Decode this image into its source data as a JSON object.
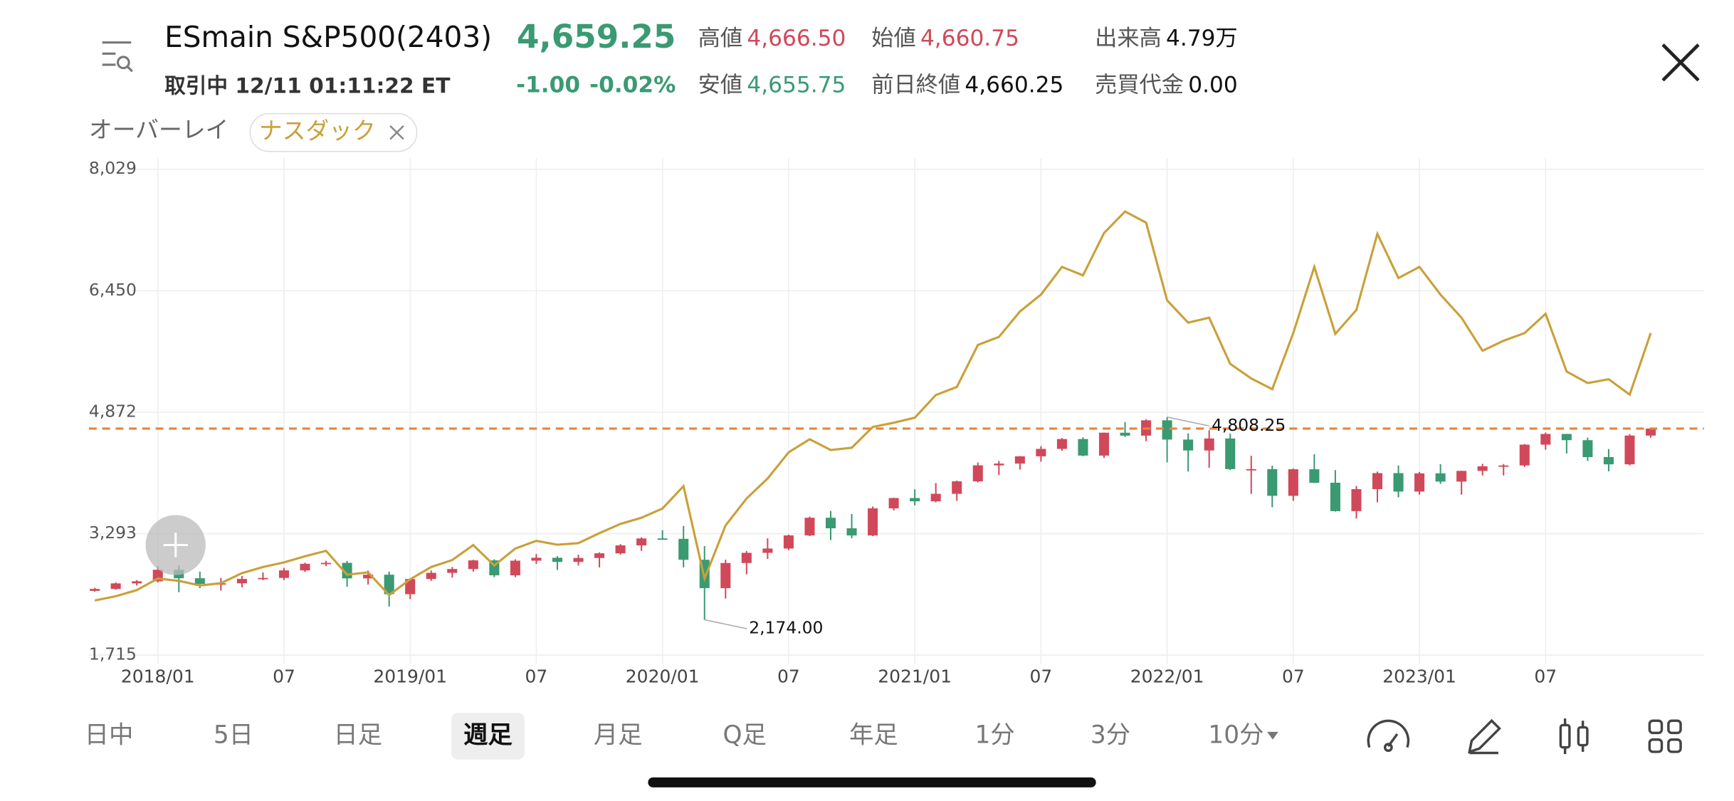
{
  "header": {
    "symbol": "ESmain S&P500(2403)",
    "status": "取引中 12/11 01:11:22 ET",
    "price": "4,659.25",
    "change": "-1.00",
    "change_pct": "-0.02%",
    "price_color": "#3a9a72",
    "stats": [
      {
        "label": "高値",
        "value": "4,666.50",
        "color": "#d0495a"
      },
      {
        "label": "始値",
        "value": "4,660.75",
        "color": "#d0495a"
      },
      {
        "label": "出来高",
        "value": "4.79万",
        "color": "#111111"
      },
      {
        "label": "安値",
        "value": "4,655.75",
        "color": "#3a9a72"
      },
      {
        "label": "前日終値",
        "value": "4,660.25",
        "color": "#111111"
      },
      {
        "label": "売買代金",
        "value": "0.00",
        "color": "#111111"
      }
    ]
  },
  "overlay_label": "オーバーレイ",
  "chart_data": {
    "type": "candlestick",
    "x": [
      "2017/10",
      "2017/11",
      "2017/12",
      "2018/01",
      "2018/02",
      "2018/03",
      "2018/04",
      "2018/05",
      "2018/06",
      "2018/07",
      "2018/08",
      "2018/09",
      "2018/10",
      "2018/11",
      "2018/12",
      "2019/01",
      "2019/02",
      "2019/03",
      "2019/04",
      "2019/05",
      "2019/06",
      "2019/07",
      "2019/08",
      "2019/09",
      "2019/10",
      "2019/11",
      "2019/12",
      "2020/01",
      "2020/02",
      "2020/03",
      "2020/04",
      "2020/05",
      "2020/06",
      "2020/07",
      "2020/08",
      "2020/09",
      "2020/10",
      "2020/11",
      "2020/12",
      "2021/01",
      "2021/02",
      "2021/03",
      "2021/04",
      "2021/05",
      "2021/06",
      "2021/07",
      "2021/08",
      "2021/09",
      "2021/10",
      "2021/11",
      "2021/12",
      "2022/01",
      "2022/02",
      "2022/03",
      "2022/04",
      "2022/05",
      "2022/06",
      "2022/07",
      "2022/08",
      "2022/09",
      "2022/10",
      "2022/11",
      "2022/12",
      "2023/01",
      "2023/02",
      "2023/03",
      "2023/04",
      "2023/05",
      "2023/06",
      "2023/07",
      "2023/08",
      "2023/09",
      "2023/10",
      "2023/11",
      "2023/12"
    ],
    "open": [
      2550,
      2575,
      2647,
      2674,
      2824,
      2714,
      2641,
      2648,
      2705,
      2718,
      2816,
      2902,
      2914,
      2712,
      2760,
      2507,
      2704,
      2784,
      2834,
      2946,
      2752,
      2942,
      2980,
      2926,
      2977,
      3038,
      3141,
      3231,
      3226,
      2954,
      2585,
      2912,
      3044,
      3100,
      3271,
      3500,
      3363,
      3270,
      3622,
      3756,
      3714,
      3811,
      3973,
      4181,
      4204,
      4298,
      4395,
      4523,
      4308,
      4605,
      4567,
      4766,
      4516,
      4374,
      4530,
      4132,
      4132,
      3785,
      4130,
      3955,
      3586,
      3872,
      4080,
      3840,
      4077,
      3970,
      4109,
      4169,
      4180,
      4450,
      4589,
      4508,
      4288,
      4194,
      4568
    ],
    "high": [
      2590,
      2660,
      2690,
      2872,
      2880,
      2800,
      2717,
      2742,
      2790,
      2848,
      2916,
      2940,
      2940,
      2815,
      2800,
      2710,
      2814,
      2860,
      2954,
      2960,
      2960,
      3028,
      3000,
      3020,
      3050,
      3157,
      3247,
      3338,
      3393,
      3130,
      2955,
      3068,
      3233,
      3280,
      3515,
      3588,
      3550,
      3645,
      3760,
      3870,
      3950,
      3983,
      4218,
      4238,
      4302,
      4430,
      4537,
      4545,
      4608,
      4743,
      4780,
      4808.25,
      4595,
      4637,
      4593,
      4307,
      4177,
      4140,
      4325,
      4119,
      3913,
      4100,
      4180,
      4095,
      4195,
      4110,
      4200,
      4198,
      4458,
      4607,
      4590,
      4541,
      4393,
      4587,
      4666.5
    ],
    "low": [
      2540,
      2565,
      2620,
      2660,
      2533,
      2585,
      2553,
      2595,
      2690,
      2690,
      2795,
      2872,
      2603,
      2631,
      2346,
      2443,
      2681,
      2722,
      2800,
      2728,
      2728,
      2900,
      2822,
      2880,
      2855,
      3020,
      3070,
      3214,
      2855,
      2174,
      2450,
      2766,
      2965,
      3080,
      3260,
      3210,
      3233,
      3260,
      3595,
      3660,
      3700,
      3720,
      3960,
      4056,
      4126,
      4230,
      4370,
      4300,
      4278,
      4550,
      4495,
      4220,
      4101,
      4150,
      4120,
      3810,
      3636,
      3720,
      3950,
      3580,
      3490,
      3700,
      3765,
      3800,
      3940,
      3800,
      4050,
      4050,
      4160,
      4385,
      4335,
      4238,
      4103,
      4180,
      4540
    ],
    "close": [
      2575,
      2647,
      2674,
      2824,
      2714,
      2641,
      2648,
      2705,
      2718,
      2816,
      2902,
      2914,
      2712,
      2760,
      2507,
      2704,
      2784,
      2834,
      2946,
      2752,
      2942,
      2980,
      2926,
      2977,
      3038,
      3141,
      3231,
      3226,
      2954,
      2585,
      2912,
      3044,
      3100,
      3271,
      3500,
      3363,
      3270,
      3622,
      3756,
      3714,
      3811,
      3973,
      4181,
      4204,
      4298,
      4395,
      4523,
      4308,
      4605,
      4567,
      4766,
      4516,
      4374,
      4530,
      4132,
      4132,
      3785,
      4130,
      3955,
      3586,
      3872,
      4080,
      3840,
      4077,
      3970,
      4109,
      4169,
      4180,
      4450,
      4589,
      4508,
      4288,
      4194,
      4568,
      4659.25
    ],
    "up_color": "#d0495a",
    "down_color": "#3a9a72",
    "series": [
      {
        "name": "ナスダック",
        "color": "#c9a03a",
        "values": [
          2425,
          2480,
          2560,
          2710,
          2680,
          2620,
          2650,
          2780,
          2860,
          2920,
          3000,
          3070,
          2760,
          2790,
          2495,
          2700,
          2860,
          2950,
          3145,
          2880,
          3100,
          3200,
          3150,
          3170,
          3300,
          3420,
          3500,
          3620,
          3910,
          2710,
          3400,
          3750,
          4010,
          4350,
          4520,
          4380,
          4410,
          4680,
          4735,
          4800,
          5095,
          5200,
          5745,
          5850,
          6180,
          6400,
          6760,
          6650,
          7200,
          7480,
          7335,
          6325,
          6035,
          6100,
          5500,
          5310,
          5170,
          5900,
          6760,
          5890,
          6200,
          7190,
          6615,
          6760,
          6400,
          6100,
          5670,
          5800,
          5900,
          6150,
          5400,
          5250,
          5300,
          5100,
          5900
        ]
      }
    ],
    "ylim": [
      1715,
      8029
    ],
    "yticks": [
      {
        "value": 1715,
        "label": "1,715"
      },
      {
        "value": 3293,
        "label": "3,293"
      },
      {
        "value": 4872,
        "label": "4,872"
      },
      {
        "value": 6450,
        "label": "6,450"
      },
      {
        "value": 8029,
        "label": "8,029"
      }
    ],
    "xticks": [
      "2018/01",
      {
        "value": "2018/07",
        "label": "07"
      },
      "2019/01",
      {
        "value": "2019/07",
        "label": "07"
      },
      "2020/01",
      {
        "value": "2020/07",
        "label": "07"
      },
      "2021/01",
      {
        "value": "2021/07",
        "label": "07"
      },
      "2022/01",
      {
        "value": "2022/07",
        "label": "07"
      },
      "2023/01",
      {
        "value": "2023/07",
        "label": "07"
      }
    ],
    "grid": true,
    "reference_line": {
      "value": 4659.25,
      "color": "#e8833a"
    },
    "annotations": [
      {
        "x": "2022/01",
        "value": 4808.25,
        "label": "4,808.25"
      },
      {
        "x": "2020/03",
        "value": 2174,
        "label": "2,174.00"
      }
    ]
  },
  "toolbar": {
    "periods": [
      "日中",
      "5日",
      "日足",
      "週足",
      "月足",
      "Q足",
      "年足",
      "1分",
      "3分",
      "10分"
    ],
    "selected": 3
  }
}
